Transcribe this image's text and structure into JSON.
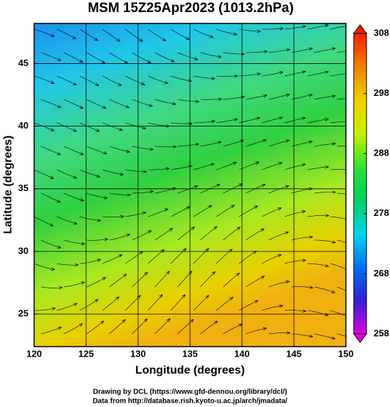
{
  "chart_data": {
    "type": "map",
    "title": "MSM 15Z25Apr2023 (1013.2hPa)",
    "xlabel": "Longitude (degrees)",
    "ylabel": "Latitude  (degrees)",
    "xlim": [
      120,
      150
    ],
    "ylim": [
      22.4,
      48.2
    ],
    "xticks": [
      120,
      125,
      130,
      135,
      140,
      145,
      150
    ],
    "yticks": [
      25,
      30,
      35,
      40,
      45
    ],
    "grid": true,
    "colorbar": {
      "lim": [
        258,
        308
      ],
      "ticks": [
        258,
        268,
        278,
        288,
        298,
        308
      ],
      "colors": [
        "#e000e0",
        "#3020d0",
        "#0070f0",
        "#00d8f0",
        "#00d060",
        "#30e030",
        "#c8f000",
        "#f0d000",
        "#f08000",
        "#f02000"
      ]
    },
    "credits": [
      "Drawing by DCL (https://www.gfd-dennou.org/library/dcl/)",
      "Data from http://database.rish.kyoto-u.ac.jp/arch/jmadata/"
    ]
  }
}
